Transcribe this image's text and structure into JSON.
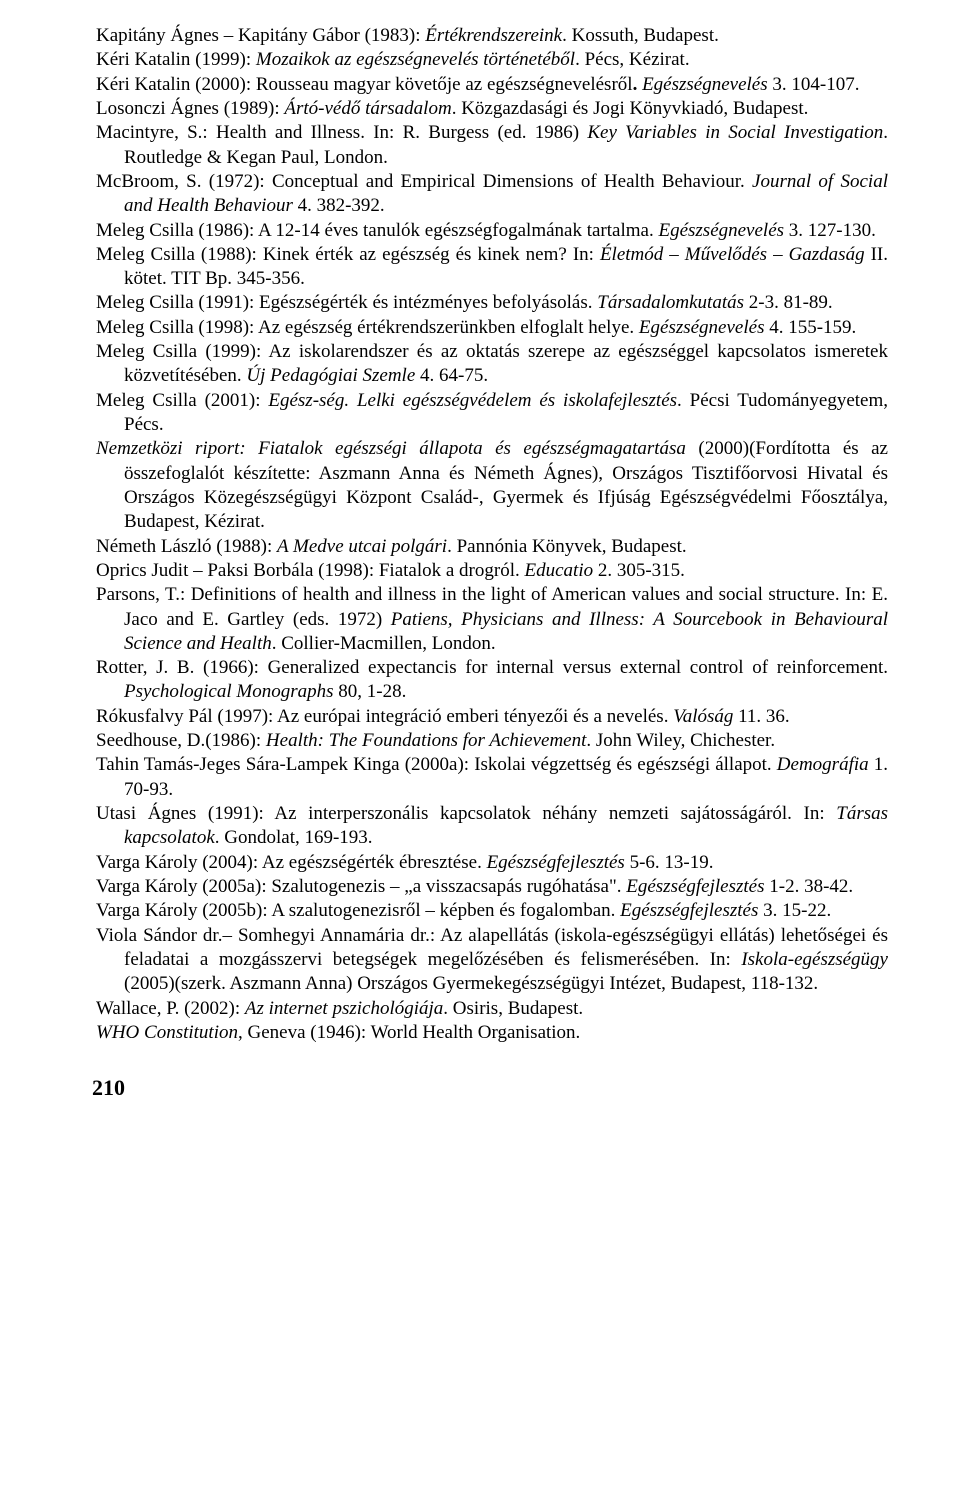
{
  "references": [
    "Kapitány Ágnes – Kapitány Gábor (1983): <i>Értékrendszereink</i>. Kossuth, Budapest.",
    "Kéri Katalin (1999): <i>Mozaikok az egészségnevelés történetéből</i>. Pécs, Kézirat.",
    "Kéri Katalin (2000): Rousseau magyar követője az egészségnevelésről<b>.</b> <i>Egészségnevelés</i> 3. 104-107.",
    "Losonczi Ágnes (1989): <i>Ártó-védő társadalom</i>. Közgazdasági és Jogi Könyvkiadó, Budapest.",
    "Macintyre, S.: Health and Illness. In: R. Burgess (ed. 1986) <i>Key Variables in Social Investigation</i>. Routledge & Kegan Paul, London.",
    "McBroom, S. (1972): Conceptual and Empirical Dimensions of Health Behaviour. <i>Journal of Social and Health Behaviour</i> 4. 382-392.",
    "Meleg Csilla (1986): A 12-14 éves tanulók egészségfogalmának tartalma. <i>Egészségnevelés</i> 3. 127-130.",
    "Meleg Csilla (1988): Kinek érték az egészség és kinek nem? In: <i>Életmód – Művelődés – Gazdaság</i> II. kötet. TIT Bp. 345-356.",
    "Meleg Csilla (1991): Egészségérték és intézményes befolyásolás. <i>Társadalomkutatás</i> 2-3. 81-89.",
    "Meleg Csilla (1998): Az egészség értékrendszerünkben elfoglalt helye. <i>Egészségnevelés</i> 4. 155-159.",
    "Meleg Csilla (1999): Az iskolarendszer és az oktatás szerepe az egészséggel kapcsolatos ismeretek közvetítésében. <i>Új Pedagógiai Szemle</i> 4. 64-75.",
    "Meleg Csilla (2001): <i>Egész-ség. Lelki egészségvédelem és iskolafejlesztés</i>. Pécsi Tudományegyetem, Pécs.",
    "<i>Nemzetközi riport: Fiatalok egészségi állapota és egészségmagatartása</i> (2000)(Fordította és az összefoglalót készítette: Aszmann Anna és Németh Ágnes), Országos Tisztifőorvosi Hivatal és Országos Közegészségügyi Központ Család-, Gyermek és Ifjúság Egészségvédelmi Főosztálya, Budapest, Kézirat.",
    "Németh László (1988): <i>A Medve utcai polgári</i>. Pannónia Könyvek, Budapest.",
    "Oprics Judit – Paksi Borbála (1998): Fiatalok a drogról. <i>Educatio</i> 2. 305-315.",
    "Parsons, T.: Definitions of health and illness in the light of American values and social structure. In: E. Jaco and E. Gartley (eds. 1972) <i>Patiens, Physicians and Illness: A Sourcebook in Behavioural Science and Health</i>. Collier-Macmillen, London.",
    "Rotter, J. B. (1966): Generalized expectancis for internal versus external control of reinforcement. <i>Psychological Monographs</i> 80, 1-28.",
    "Rókusfalvy Pál (1997): Az európai integráció emberi tényezői és a nevelés. <i>Valóság</i> 11. 36.",
    "Seedhouse, D.(1986): <i>Health: The Foundations for Achievement</i>. John Wiley, Chichester.",
    "Tahin Tamás-Jeges Sára-Lampek Kinga (2000a): Iskolai végzettség és egészségi állapot. <i>Demográfia</i> 1. 70-93.",
    "Utasi Ágnes (1991): Az interperszonális kapcsolatok néhány nemzeti sajátosságáról. In: <i>Társas kapcsolatok</i>. Gondolat, 169-193.",
    "Varga Károly (2004): Az egészségérték ébresztése. <i>Egészségfejlesztés</i> 5-6. 13-19.",
    "Varga Károly (2005a): Szalutogenezis – „a visszacsapás rugóhatása\". <i>Egészségfejlesztés</i> 1-2. 38-42.",
    "Varga Károly (2005b): A szalutogenezisről – képben és fogalomban. <i>Egészségfejlesztés</i> 3. 15-22.",
    "Viola Sándor dr.– Somhegyi Annamária dr.: Az alapellátás (iskola-egészségügyi ellátás) lehetőségei és feladatai a mozgásszervi betegségek megelőzésében és felismerésében. In: <i>Iskola-egészségügy</i> (2005)(szerk. Aszmann Anna) Országos Gyermekegészségügyi Intézet, Budapest, 118-132.",
    "Wallace, P. (2002): <i>Az internet pszichológiája</i>. Osiris, Budapest.",
    "<i>WHO Constitution</i>, Geneva (1946): World Health Organisation."
  ],
  "page_number": "210"
}
